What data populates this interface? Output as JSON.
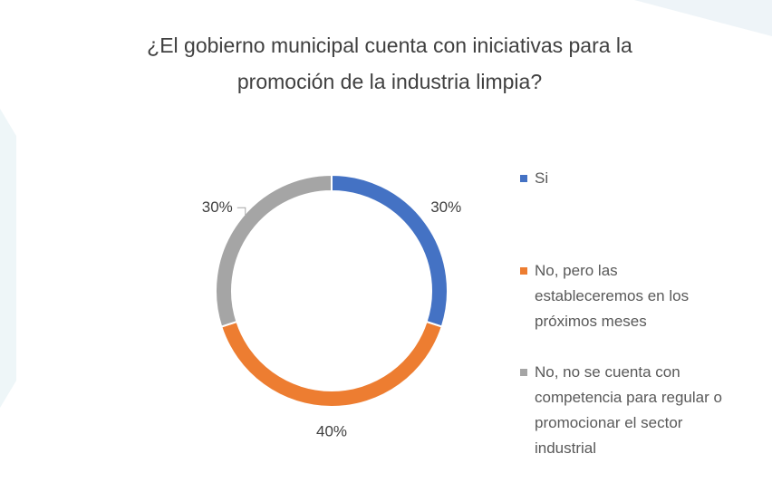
{
  "chart_data": {
    "type": "donut",
    "title": "¿El gobierno municipal cuenta con iniciativas para la promoción de la industria limpia?",
    "categories": [
      "Si",
      "No, pero las estableceremos en los próximos meses",
      "No, no se cuenta con competencia para regular o promocionar el sector industrial"
    ],
    "values": [
      30,
      40,
      30
    ],
    "value_labels": [
      "30%",
      "40%",
      "30%"
    ],
    "colors": [
      "#4472c4",
      "#ed7d31",
      "#a5a5a5"
    ],
    "legend": "right"
  }
}
